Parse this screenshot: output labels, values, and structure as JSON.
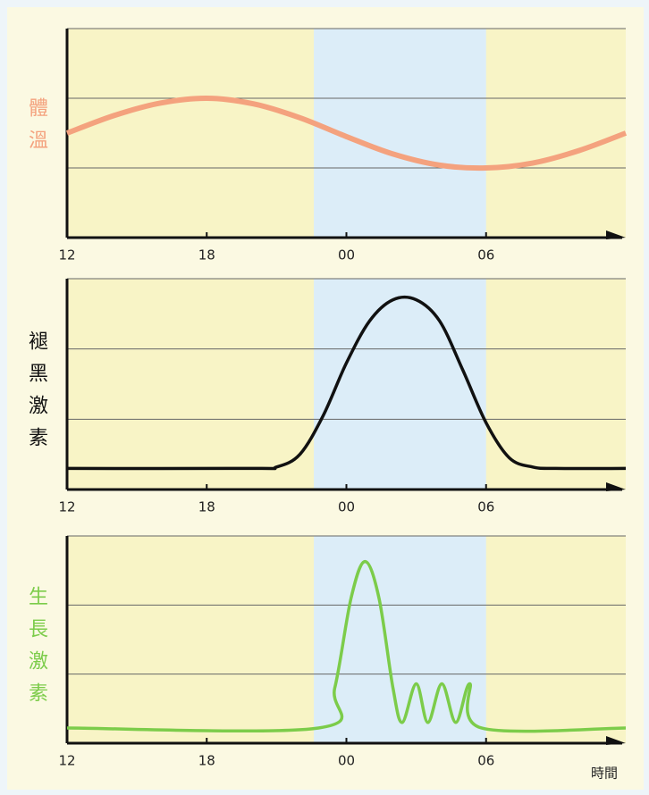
{
  "chart_data": [
    {
      "type": "line",
      "y_label": "體溫",
      "color": "#f4a27e",
      "x": [
        12,
        14,
        16,
        18,
        20,
        22,
        24,
        26,
        28,
        30,
        32,
        34,
        36
      ],
      "values": [
        1.5,
        1.75,
        1.93,
        2.0,
        1.92,
        1.72,
        1.45,
        1.2,
        1.04,
        1.0,
        1.07,
        1.25,
        1.5
      ],
      "xlim": [
        12,
        36
      ],
      "xticks": [
        12,
        18,
        {
          "value": 24,
          "label": "00"
        },
        {
          "value": 30,
          "label": "06"
        }
      ],
      "ylim": [
        0,
        3
      ],
      "yticks": [
        1,
        2,
        3
      ],
      "grid": true,
      "night": [
        22.6,
        30
      ]
    },
    {
      "type": "line",
      "y_label": "褪黑激素",
      "color": "#111111",
      "x": [
        12,
        20,
        21,
        22,
        23,
        24,
        25,
        26,
        27,
        28,
        29,
        30,
        31,
        32,
        33,
        36
      ],
      "values": [
        0.3,
        0.3,
        0.32,
        0.5,
        1.05,
        1.8,
        2.4,
        2.7,
        2.7,
        2.4,
        1.7,
        0.95,
        0.45,
        0.32,
        0.3,
        0.3
      ],
      "xlim": [
        12,
        36
      ],
      "xticks": [
        12,
        18,
        {
          "value": 24,
          "label": "00"
        },
        {
          "value": 30,
          "label": "06"
        }
      ],
      "ylim": [
        0,
        3
      ],
      "yticks": [
        1,
        2,
        3
      ],
      "grid": true,
      "night": [
        22.6,
        30
      ]
    },
    {
      "type": "line",
      "y_label": "生長激素",
      "color": "#7ccc4a",
      "x_label": "時間",
      "x": [
        12,
        22.8,
        23.5,
        24.2,
        24.8,
        25.4,
        26.0,
        26.4,
        27.0,
        27.5,
        28.1,
        28.7,
        29.3,
        29.8,
        36
      ],
      "values": [
        0.22,
        0.22,
        0.8,
        2.1,
        2.63,
        2.1,
        0.8,
        0.3,
        0.86,
        0.3,
        0.86,
        0.3,
        0.86,
        0.22,
        0.22
      ],
      "xlim": [
        12,
        36
      ],
      "xticks": [
        12,
        18,
        {
          "value": 24,
          "label": "00"
        },
        {
          "value": 30,
          "label": "06"
        }
      ],
      "ylim": [
        0,
        3
      ],
      "yticks": [
        1,
        2,
        3
      ],
      "grid": true,
      "night": [
        22.6,
        30
      ]
    }
  ]
}
